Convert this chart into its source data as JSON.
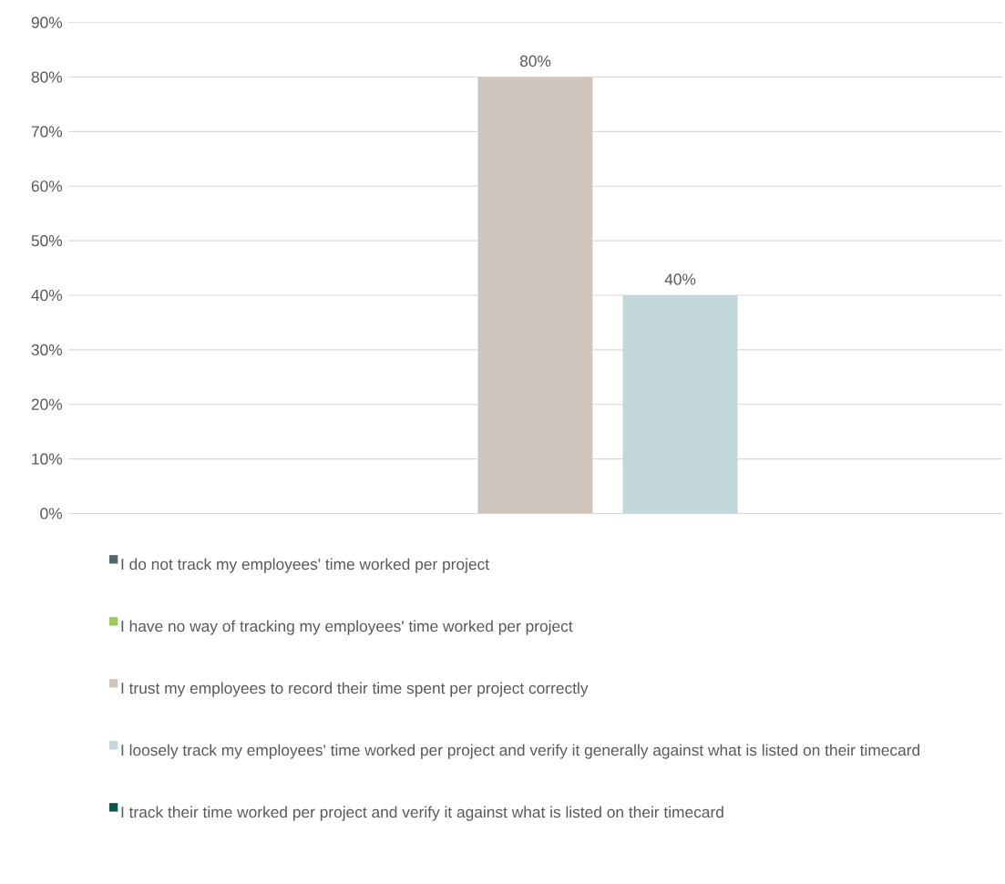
{
  "chart_data": {
    "type": "bar",
    "categories": [
      null
    ],
    "series": [
      {
        "name": "I do not track my employees' time worked per project",
        "color": "#4f6770",
        "values": [
          0
        ]
      },
      {
        "name": "I have no way of tracking my employees' time worked per project",
        "color": "#9bcb5f",
        "values": [
          0
        ]
      },
      {
        "name": "I trust my employees to record their time spent per project correctly",
        "color": "#d0c5bc",
        "values": [
          80
        ],
        "value_labels": [
          "80%"
        ]
      },
      {
        "name": "I loosely track my employees' time worked per project and verify it generally against what is listed on their timecard",
        "color": "#c1d7d9",
        "values": [
          40
        ],
        "value_labels": [
          "40%"
        ]
      },
      {
        "name": "I track their time worked per project and verify it against what is listed on their timecard",
        "color": "#0b5450",
        "values": [
          0
        ]
      }
    ],
    "ylim": [
      0,
      90
    ],
    "yticks": [
      {
        "value": 0,
        "label": "0%"
      },
      {
        "value": 10,
        "label": "10%"
      },
      {
        "value": 20,
        "label": "20%"
      },
      {
        "value": 30,
        "label": "30%"
      },
      {
        "value": 40,
        "label": "40%"
      },
      {
        "value": 50,
        "label": "50%"
      },
      {
        "value": 60,
        "label": "60%"
      },
      {
        "value": 70,
        "label": "70%"
      },
      {
        "value": 80,
        "label": "80%"
      },
      {
        "value": 90,
        "label": "90%"
      }
    ],
    "grid": "y",
    "legend": "bottom",
    "tick_labels": "y"
  }
}
